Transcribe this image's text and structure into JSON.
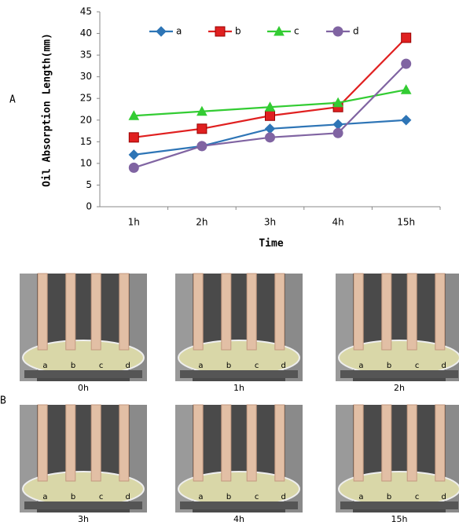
{
  "panel_labels": [
    "A",
    "B"
  ],
  "chart_data": {
    "type": "line",
    "y_label": "Oil Absorption Length(mm)",
    "x_label": "Time",
    "categories": [
      "1h",
      "2h",
      "3h",
      "4h",
      "15h"
    ],
    "series": [
      {
        "name": "a",
        "color": "#2e75b6",
        "marker": "diamond",
        "values": [
          12,
          14,
          18,
          19,
          20
        ]
      },
      {
        "name": "b",
        "color": "#e02020",
        "marker": "square",
        "values": [
          16,
          18,
          21,
          23,
          39
        ]
      },
      {
        "name": "c",
        "color": "#33cc33",
        "marker": "triangle",
        "values": [
          21,
          22,
          23,
          24,
          27
        ]
      },
      {
        "name": "d",
        "color": "#8064a2",
        "marker": "circle",
        "values": [
          9,
          14,
          16,
          17,
          33
        ]
      }
    ],
    "ylim": [
      0,
      45
    ],
    "yticks": [
      0,
      5,
      10,
      15,
      20,
      25,
      30,
      35,
      40,
      45
    ],
    "legend": "top"
  },
  "photos": [
    {
      "label": "0h",
      "tubes": [
        "a",
        "b",
        "c",
        "d"
      ]
    },
    {
      "label": "1h",
      "tubes": [
        "a",
        "b",
        "c",
        "d"
      ]
    },
    {
      "label": "2h",
      "tubes": [
        "a",
        "b",
        "c",
        "d"
      ]
    },
    {
      "label": "3h",
      "tubes": [
        "a",
        "b",
        "c",
        "d"
      ]
    },
    {
      "label": "4h",
      "tubes": [
        "a",
        "b",
        "c",
        "d"
      ]
    },
    {
      "label": "15h",
      "tubes": [
        "a",
        "b",
        "c",
        "d"
      ]
    }
  ]
}
